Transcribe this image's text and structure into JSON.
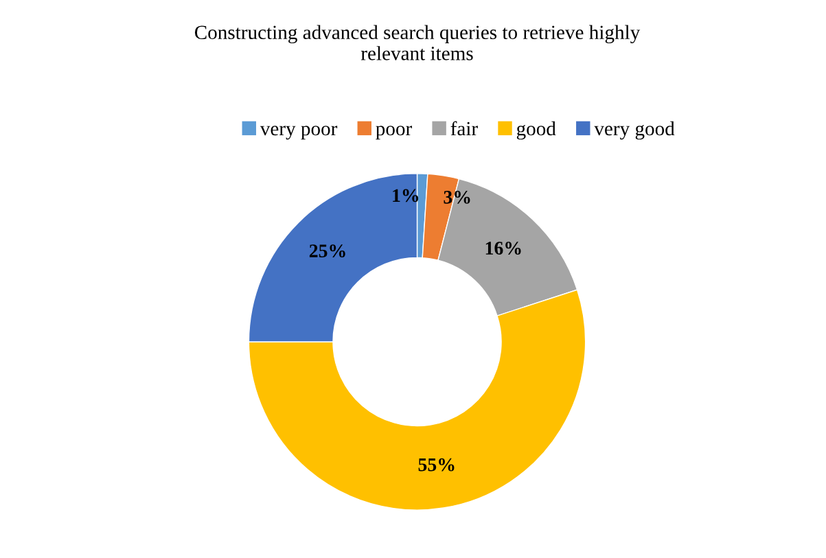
{
  "chart_data": {
    "type": "donut",
    "title": "Constructing advanced search queries to retrieve highly\nrelevant items",
    "categories": [
      "very poor",
      "poor",
      "fair",
      "good",
      "very good"
    ],
    "values": [
      1,
      3,
      16,
      55,
      25
    ],
    "colors": [
      "#5b9bd5",
      "#ed7d31",
      "#a5a5a5",
      "#ffc000",
      "#4472c4"
    ],
    "value_labels": [
      "1%",
      "3%",
      "16%",
      "55%",
      "25%"
    ],
    "legend": "top"
  }
}
